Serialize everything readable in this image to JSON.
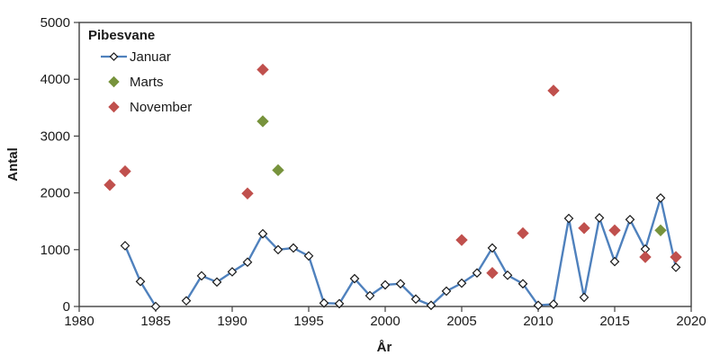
{
  "chart_data": {
    "type": "line",
    "title": "Pibesvane",
    "xlabel": "År",
    "ylabel": "Antal",
    "xlim": [
      1980,
      2020
    ],
    "ylim": [
      0,
      5000
    ],
    "xticks": [
      1980,
      1985,
      1990,
      1995,
      2000,
      2005,
      2010,
      2015,
      2020
    ],
    "yticks": [
      0,
      1000,
      2000,
      3000,
      4000,
      5000
    ],
    "grid": false,
    "legend_position": "top-left-inside",
    "axis_color": "#404040",
    "series": [
      {
        "name": "Januar",
        "type": "line",
        "color": "#4f81bd",
        "marker": "open-diamond",
        "marker_fill": "#ffffff",
        "marker_stroke": "#1a1a1a",
        "points": [
          [
            1983,
            1070
          ],
          [
            1984,
            440
          ],
          [
            1985,
            0
          ],
          [
            1986,
            null
          ],
          [
            1987,
            100
          ],
          [
            1988,
            540
          ],
          [
            1989,
            430
          ],
          [
            1990,
            610
          ],
          [
            1991,
            780
          ],
          [
            1992,
            1280
          ],
          [
            1993,
            1000
          ],
          [
            1994,
            1030
          ],
          [
            1995,
            890
          ],
          [
            1996,
            60
          ],
          [
            1997,
            50
          ],
          [
            1998,
            490
          ],
          [
            1999,
            190
          ],
          [
            2000,
            380
          ],
          [
            2001,
            400
          ],
          [
            2002,
            130
          ],
          [
            2003,
            20
          ],
          [
            2004,
            270
          ],
          [
            2005,
            410
          ],
          [
            2006,
            590
          ],
          [
            2007,
            1030
          ],
          [
            2008,
            550
          ],
          [
            2009,
            400
          ],
          [
            2010,
            20
          ],
          [
            2011,
            40
          ],
          [
            2012,
            1550
          ],
          [
            2013,
            160
          ],
          [
            2014,
            1560
          ],
          [
            2015,
            790
          ],
          [
            2016,
            1530
          ],
          [
            2017,
            1010
          ],
          [
            2018,
            1910
          ],
          [
            2019,
            690
          ]
        ]
      },
      {
        "name": "Marts",
        "type": "scatter",
        "color": "#77933c",
        "marker": "diamond",
        "points": [
          [
            1992,
            3260
          ],
          [
            1993,
            2400
          ],
          [
            2018,
            1340
          ]
        ]
      },
      {
        "name": "November",
        "type": "scatter",
        "color": "#c0504d",
        "marker": "diamond",
        "points": [
          [
            1982,
            2140
          ],
          [
            1983,
            2380
          ],
          [
            1991,
            1990
          ],
          [
            1992,
            4170
          ],
          [
            2005,
            1170
          ],
          [
            2007,
            590
          ],
          [
            2009,
            1290
          ],
          [
            2011,
            3800
          ],
          [
            2013,
            1380
          ],
          [
            2015,
            1340
          ],
          [
            2017,
            870
          ],
          [
            2019,
            870
          ]
        ]
      }
    ]
  }
}
